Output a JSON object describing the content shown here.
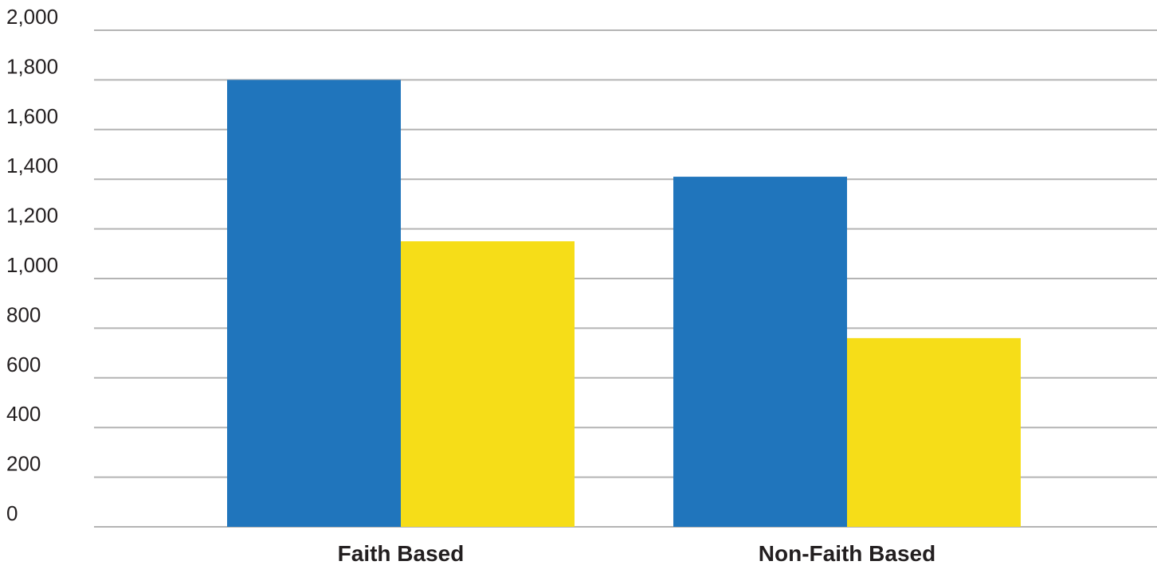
{
  "chart_data": {
    "type": "bar",
    "categories": [
      "Faith Based",
      "Non-Faith Based"
    ],
    "series": [
      {
        "values": [
          1800,
          1410
        ],
        "color": "#2075bc"
      },
      {
        "values": [
          1150,
          760
        ],
        "color": "#f6dd18"
      }
    ],
    "y_ticks": [
      "0",
      "200",
      "400",
      "600",
      "800",
      "1,000",
      "1,200",
      "1,400",
      "1,600",
      "1,800",
      "2,000"
    ],
    "ylim": [
      0,
      2000
    ],
    "grid": true,
    "legend": "none",
    "title": "",
    "xlabel": "",
    "ylabel": ""
  }
}
